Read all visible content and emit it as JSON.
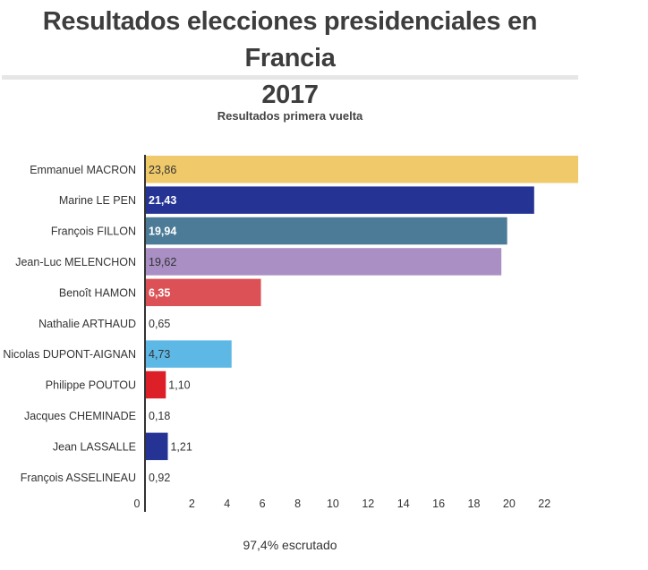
{
  "header": {
    "title_line1": "Resultados elecciones presidenciales en Francia",
    "title_line2": "2017"
  },
  "chart_data": {
    "type": "bar",
    "orientation": "horizontal",
    "title": "Resultados primera vuelta",
    "xlabel": "",
    "ylabel": "",
    "xlim": [
      0,
      23.86
    ],
    "grid": false,
    "categories": [
      "Emmanuel MACRON",
      "Marine LE PEN",
      "François FILLON",
      "Jean-Luc MELENCHON",
      "Benoît HAMON",
      "Nathalie ARTHAUD",
      "Nicolas DUPONT-AIGNAN",
      "Philippe POUTOU",
      "Jacques CHEMINADE",
      "Jean LASSALLE",
      "François ASSELINEAU"
    ],
    "values": [
      23.86,
      21.43,
      19.94,
      19.62,
      6.35,
      0.65,
      4.73,
      1.1,
      0.18,
      1.21,
      0.92
    ],
    "value_labels": [
      "23,86",
      "21,43",
      "19,94",
      "19,62",
      "6,35",
      "0,65",
      "4,73",
      "1,10",
      "0,18",
      "1,21",
      "0,92"
    ],
    "colors": [
      "#efc96a",
      "#253494",
      "#4b7b96",
      "#a98fc4",
      "#dc5155",
      null,
      "#5db8e5",
      "#dd2027",
      null,
      "#253494",
      null
    ],
    "label_styles": [
      "dark",
      "light-bold",
      "light-bold",
      "dark",
      "light-bold",
      "outside",
      "dark",
      "outside",
      "outside",
      "outside",
      "outside"
    ],
    "x_ticks": [
      0,
      2,
      4,
      6,
      8,
      10,
      12,
      14,
      16,
      18,
      20,
      22
    ],
    "x_tick_labels": [
      "0",
      "2",
      "4",
      "6",
      "8",
      "10",
      "12",
      "14",
      "16",
      "18",
      "20",
      "22"
    ]
  },
  "footer": {
    "note": "97,4% escrutado"
  }
}
